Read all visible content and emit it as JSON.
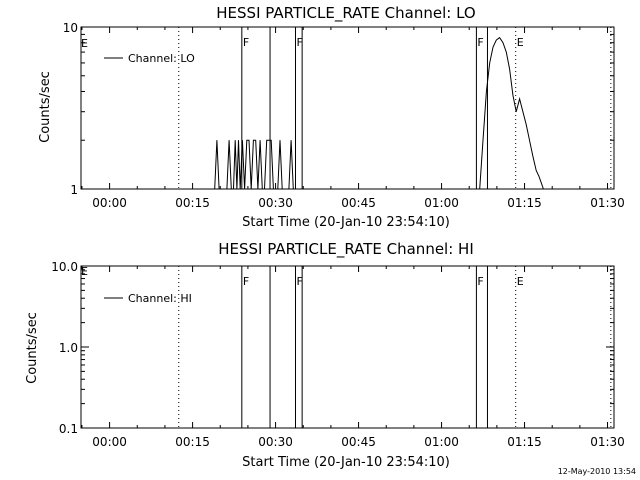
{
  "chart_data": [
    {
      "type": "line",
      "title": "HESSI PARTICLE_RATE Channel: LO",
      "xlabel": "Start Time (20-Jan-10 23:54:10)",
      "ylabel": "Counts/sec",
      "y_scale": "log",
      "ylim": [
        1,
        10
      ],
      "yticks": [
        {
          "v": 10,
          "label": "10"
        },
        {
          "v": 1,
          "label": "1"
        }
      ],
      "xlim": [
        -5.17,
        91.17
      ],
      "xticks": [
        {
          "v": 0,
          "label": "00:00"
        },
        {
          "v": 15,
          "label": "00:15"
        },
        {
          "v": 30,
          "label": "00:30"
        },
        {
          "v": 45,
          "label": "00:45"
        },
        {
          "v": 60,
          "label": "01:00"
        },
        {
          "v": 75,
          "label": "01:15"
        },
        {
          "v": 90,
          "label": "01:30"
        }
      ],
      "legend": {
        "label": "Channel: LO",
        "position": "top-left"
      },
      "markers": [
        {
          "x": 12.5,
          "style": "dotted",
          "label": ""
        },
        {
          "x": 23.9,
          "style": "solid",
          "label": "F"
        },
        {
          "x": 29.0,
          "style": "solid",
          "label": ""
        },
        {
          "x": 33.6,
          "style": "solid",
          "label": "F"
        },
        {
          "x": 34.8,
          "style": "solid",
          "label": ""
        },
        {
          "x": 66.3,
          "style": "solid",
          "label": "F"
        },
        {
          "x": 68.3,
          "style": "solid",
          "label": ""
        },
        {
          "x": 73.4,
          "style": "dotted",
          "label": "E"
        },
        {
          "x": 90.6,
          "style": "dotted",
          "label": ""
        }
      ],
      "edge_label": {
        "label": "E"
      },
      "series": [
        {
          "x": [
            18.6,
            19.0,
            19.4,
            19.8,
            20.2,
            20.5,
            20.8,
            21.2,
            21.6,
            22.0,
            22.4,
            22.7,
            23.0,
            23.3,
            23.6,
            24.0,
            24.4,
            24.8,
            25.2,
            25.6,
            26.0,
            26.4,
            26.8,
            27.2,
            27.6,
            28.0,
            28.4,
            28.8,
            29.2,
            29.6,
            30.0,
            30.4,
            30.8,
            31.2,
            31.6,
            32.0,
            32.4,
            32.8,
            33.2,
            33.6,
            34.0,
            34.4,
            34.8,
            58.0,
            66.3,
            66.9,
            67.5,
            68.1,
            68.7,
            69.3,
            69.9,
            70.5,
            71.1,
            71.7,
            72.3,
            72.9,
            73.5,
            74.1,
            74.7,
            75.3,
            75.9,
            76.5,
            77.1,
            77.6,
            78.0,
            78.4
          ],
          "y": [
            1,
            1,
            2,
            1,
            1,
            1,
            1,
            1,
            2,
            1,
            1,
            2,
            1,
            2,
            1,
            2,
            1,
            2,
            2,
            1,
            2,
            2,
            1,
            2,
            1,
            1,
            2,
            2,
            2,
            1,
            1,
            1,
            2,
            1,
            1,
            1,
            1,
            2,
            1,
            1,
            1,
            1,
            1,
            1,
            1,
            1,
            2,
            4,
            6,
            7.5,
            8.3,
            8.6,
            8,
            7,
            5.5,
            3.8,
            3,
            3.6,
            3,
            2.5,
            2,
            1.6,
            1.3,
            1.2,
            1.1,
            1
          ]
        }
      ]
    },
    {
      "type": "line",
      "title": "HESSI PARTICLE_RATE Channel: HI",
      "xlabel": "Start Time (20-Jan-10 23:54:10)",
      "ylabel": "Counts/sec",
      "y_scale": "log",
      "ylim": [
        0.1,
        10
      ],
      "yticks": [
        {
          "v": 10,
          "label": "10.0"
        },
        {
          "v": 1,
          "label": "1.0"
        },
        {
          "v": 0.1,
          "label": "0.1"
        }
      ],
      "xlim": [
        -5.17,
        91.17
      ],
      "xticks": [
        {
          "v": 0,
          "label": "00:00"
        },
        {
          "v": 15,
          "label": "00:15"
        },
        {
          "v": 30,
          "label": "00:30"
        },
        {
          "v": 45,
          "label": "00:45"
        },
        {
          "v": 60,
          "label": "01:00"
        },
        {
          "v": 75,
          "label": "01:15"
        },
        {
          "v": 90,
          "label": "01:30"
        }
      ],
      "legend": {
        "label": "Channel: HI",
        "position": "top-left"
      },
      "markers": [
        {
          "x": 12.5,
          "style": "dotted",
          "label": ""
        },
        {
          "x": 23.9,
          "style": "solid",
          "label": "F"
        },
        {
          "x": 29.0,
          "style": "solid",
          "label": ""
        },
        {
          "x": 33.6,
          "style": "solid",
          "label": "F"
        },
        {
          "x": 34.8,
          "style": "solid",
          "label": ""
        },
        {
          "x": 66.3,
          "style": "solid",
          "label": "F"
        },
        {
          "x": 68.3,
          "style": "solid",
          "label": ""
        },
        {
          "x": 73.4,
          "style": "dotted",
          "label": "E"
        },
        {
          "x": 90.6,
          "style": "dotted",
          "label": ""
        }
      ],
      "edge_label": {
        "label": "E"
      },
      "series": []
    }
  ],
  "footer": {
    "timestamp": "12-May-2010 13:54"
  }
}
